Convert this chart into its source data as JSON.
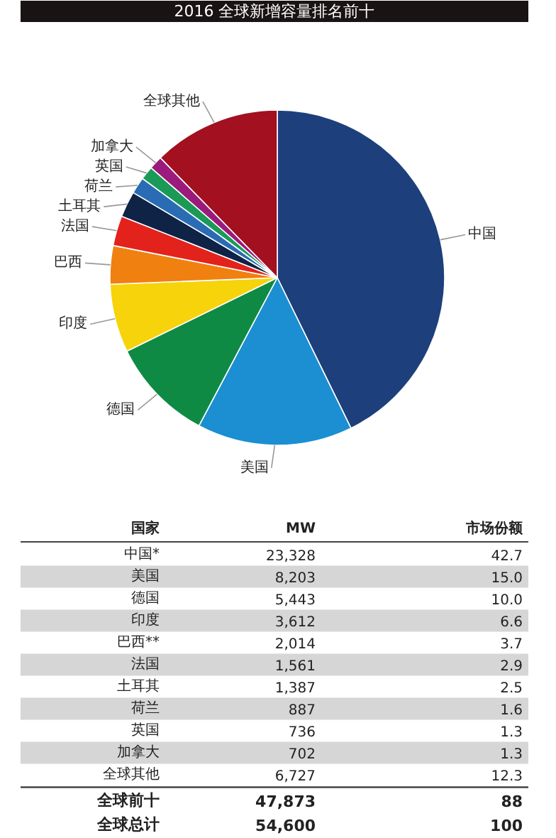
{
  "chart_data": {
    "type": "pie",
    "title": "2016 全球新增容量排名前十",
    "categories": [
      "中国",
      "美国",
      "德国",
      "印度",
      "巴西",
      "法国",
      "土耳其",
      "荷兰",
      "英国",
      "加拿大",
      "全球其他"
    ],
    "values": [
      42.7,
      15.0,
      10.0,
      6.6,
      3.7,
      2.9,
      2.5,
      1.6,
      1.3,
      1.3,
      12.3
    ],
    "colors": [
      "#1d3f7c",
      "#1b8fd2",
      "#0f8a45",
      "#f6d30a",
      "#f0800f",
      "#e3221c",
      "#0e2346",
      "#2a6cb4",
      "#1b9a57",
      "#9b1b7c",
      "#a3101f"
    ],
    "annotations": [
      "国家",
      "MW",
      "市场份额",
      "中国*",
      "美国",
      "德国",
      "印度",
      "巴西**",
      "法国",
      "土耳其",
      "荷兰",
      "英国",
      "加拿大",
      "全球其他",
      "23,328",
      "8,203",
      "5,443",
      "3,612",
      "2,014",
      "1,561",
      "1,387",
      "887",
      "736",
      "702",
      "6,727",
      "42.7",
      "15.0",
      "10.0",
      "6.6",
      "3.7",
      "2.9",
      "2.5",
      "1.6",
      "1.3",
      "1.3",
      "12.3",
      "全球前十",
      "47,873",
      "88",
      "全球总计",
      "54,600",
      "100"
    ]
  }
}
